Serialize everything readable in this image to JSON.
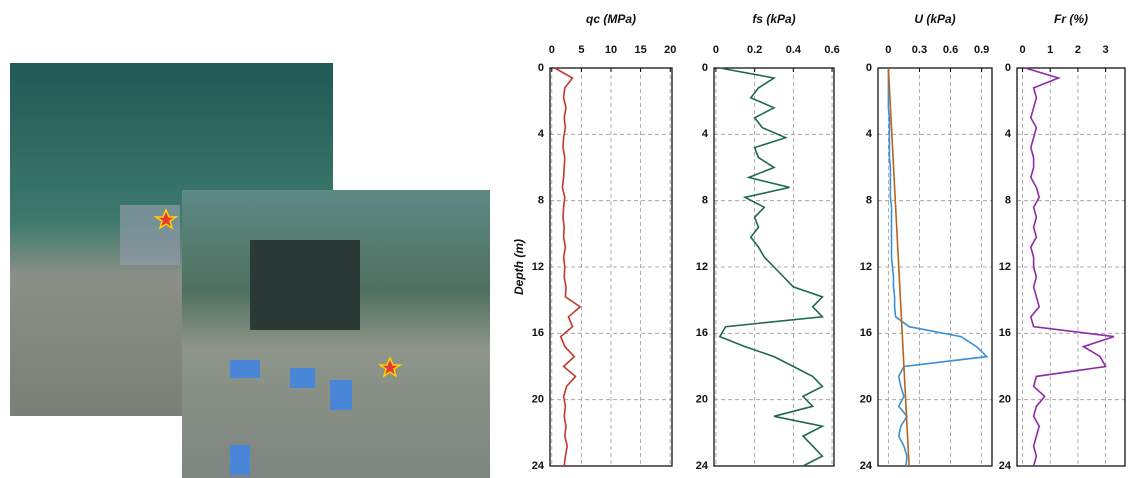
{
  "chart_data": [
    {
      "type": "line",
      "title": "qc (MPa)",
      "ylabel": "Depth (m)",
      "xlim": [
        -0.3,
        20.3
      ],
      "xticks": [
        0,
        5,
        10,
        15,
        20
      ],
      "ylim": [
        0,
        24
      ],
      "yticks": [
        0,
        4,
        8,
        12,
        16,
        20,
        24
      ],
      "grid": true,
      "series": [
        {
          "color": "#c0392b",
          "depth": [
            0,
            0.6,
            1.2,
            1.8,
            2.4,
            3,
            3.6,
            4.2,
            4.8,
            5.4,
            6,
            6.6,
            7.2,
            7.8,
            8.4,
            9,
            9.6,
            10.2,
            10.8,
            11.4,
            12,
            12.6,
            13.2,
            13.8,
            14.4,
            15,
            15.6,
            16.2,
            16.8,
            17.4,
            18,
            18.6,
            19.2,
            19.8,
            20.4,
            21,
            21.6,
            22.2,
            22.8,
            23.4,
            24
          ],
          "values": [
            0.5,
            3.5,
            2.2,
            2.0,
            2.4,
            2.1,
            2.3,
            2.0,
            1.9,
            2.2,
            2.1,
            2.0,
            1.8,
            2.2,
            2.0,
            1.9,
            2.1,
            2.0,
            2.3,
            2.0,
            2.2,
            2.1,
            2.4,
            2.3,
            4.8,
            2.8,
            3.5,
            1.5,
            2.2,
            3.8,
            2.0,
            4.0,
            2.5,
            2.0,
            2.3,
            2.1,
            2.4,
            2.2,
            2.6,
            2.3,
            2.1
          ]
        }
      ]
    },
    {
      "type": "line",
      "title": "fs (kPa)",
      "xlim": [
        -0.01,
        0.61
      ],
      "xticks": [
        0,
        0.2,
        0.4,
        0.6
      ],
      "ylim": [
        0,
        24
      ],
      "yticks": [
        0,
        4,
        8,
        12,
        16,
        20,
        24
      ],
      "grid": true,
      "series": [
        {
          "color": "#1e6b45",
          "depth": [
            0,
            0.6,
            1.2,
            1.8,
            2.4,
            3,
            3.6,
            4.2,
            4.8,
            5.4,
            6,
            6.6,
            7.2,
            7.8,
            8.4,
            9,
            9.6,
            10.2,
            10.8,
            11.4,
            12,
            12.6,
            13.2,
            13.8,
            14.4,
            15,
            15.6,
            16.2,
            16.8,
            17.4,
            18,
            18.6,
            19.2,
            19.8,
            20.4,
            21,
            21.6,
            22.2,
            22.8,
            23.4,
            24
          ],
          "values": [
            0.02,
            0.3,
            0.22,
            0.18,
            0.3,
            0.2,
            0.24,
            0.36,
            0.2,
            0.22,
            0.3,
            0.17,
            0.38,
            0.15,
            0.25,
            0.2,
            0.22,
            0.18,
            0.22,
            0.25,
            0.3,
            0.35,
            0.4,
            0.55,
            0.5,
            0.55,
            0.05,
            0.02,
            0.15,
            0.3,
            0.4,
            0.5,
            0.55,
            0.45,
            0.5,
            0.3,
            0.55,
            0.45,
            0.5,
            0.55,
            0.45
          ]
        }
      ]
    },
    {
      "type": "line",
      "title": "U (kPa)",
      "xlim": [
        -0.1,
        1.0
      ],
      "xticks": [
        0,
        0.3,
        0.6,
        0.9
      ],
      "ylim": [
        0,
        24
      ],
      "yticks": [
        0,
        4,
        8,
        12,
        16,
        20,
        24
      ],
      "grid": true,
      "series": [
        {
          "color": "#3a8fd6",
          "depth": [
            0,
            0.6,
            1.2,
            1.8,
            2.4,
            3,
            3.6,
            4.2,
            4.8,
            5.4,
            6,
            6.6,
            7.2,
            7.8,
            8.4,
            9,
            9.6,
            10.2,
            10.8,
            11.4,
            12,
            12.6,
            13.2,
            13.8,
            14.4,
            15,
            15.6,
            16.2,
            16.8,
            17.4,
            18,
            18.6,
            19.2,
            19.8,
            20.4,
            21,
            21.6,
            22.2,
            22.8,
            23.4,
            24
          ],
          "values": [
            0,
            0,
            0,
            0,
            0,
            0.01,
            0.01,
            0.01,
            0.01,
            0.01,
            0.02,
            0.02,
            0.02,
            0.02,
            0.03,
            0.03,
            0.03,
            0.03,
            0.03,
            0.03,
            0.04,
            0.05,
            0.05,
            0.06,
            0.06,
            0.07,
            0.2,
            0.7,
            0.85,
            0.95,
            0.15,
            0.1,
            0.12,
            0.15,
            0.1,
            0.18,
            0.12,
            0.1,
            0.15,
            0.18,
            0.17
          ]
        },
        {
          "color": "#b5651d",
          "depth": [
            0,
            24
          ],
          "values": [
            0,
            0.2
          ]
        }
      ]
    },
    {
      "type": "line",
      "title": "Fr (%)",
      "xlim": [
        -0.2,
        3.7
      ],
      "xticks": [
        0,
        1,
        2,
        3
      ],
      "ylim": [
        0,
        24
      ],
      "yticks": [
        0,
        4,
        8,
        12,
        16,
        20,
        24
      ],
      "grid": true,
      "series": [
        {
          "color": "#8e2aa8",
          "depth": [
            0,
            0.6,
            1.2,
            1.8,
            2.4,
            3,
            3.6,
            4.2,
            4.8,
            5.4,
            6,
            6.6,
            7.2,
            7.8,
            8.4,
            9,
            9.6,
            10.2,
            10.8,
            11.4,
            12,
            12.6,
            13.2,
            13.8,
            14.4,
            15,
            15.6,
            16.2,
            16.8,
            17.4,
            18,
            18.6,
            19.2,
            19.8,
            20.4,
            21,
            21.6,
            22.2,
            22.8,
            23.4,
            24
          ],
          "values": [
            0.1,
            1.3,
            0.4,
            0.5,
            0.4,
            0.3,
            0.5,
            0.4,
            0.3,
            0.4,
            0.4,
            0.3,
            0.5,
            0.6,
            0.4,
            0.5,
            0.4,
            0.5,
            0.3,
            0.4,
            0.4,
            0.5,
            0.4,
            0.5,
            0.6,
            0.3,
            0.4,
            3.3,
            2.2,
            2.8,
            3.0,
            0.5,
            0.4,
            0.8,
            0.5,
            0.4,
            0.6,
            0.5,
            0.4,
            0.5,
            0.4
          ]
        }
      ]
    }
  ]
}
